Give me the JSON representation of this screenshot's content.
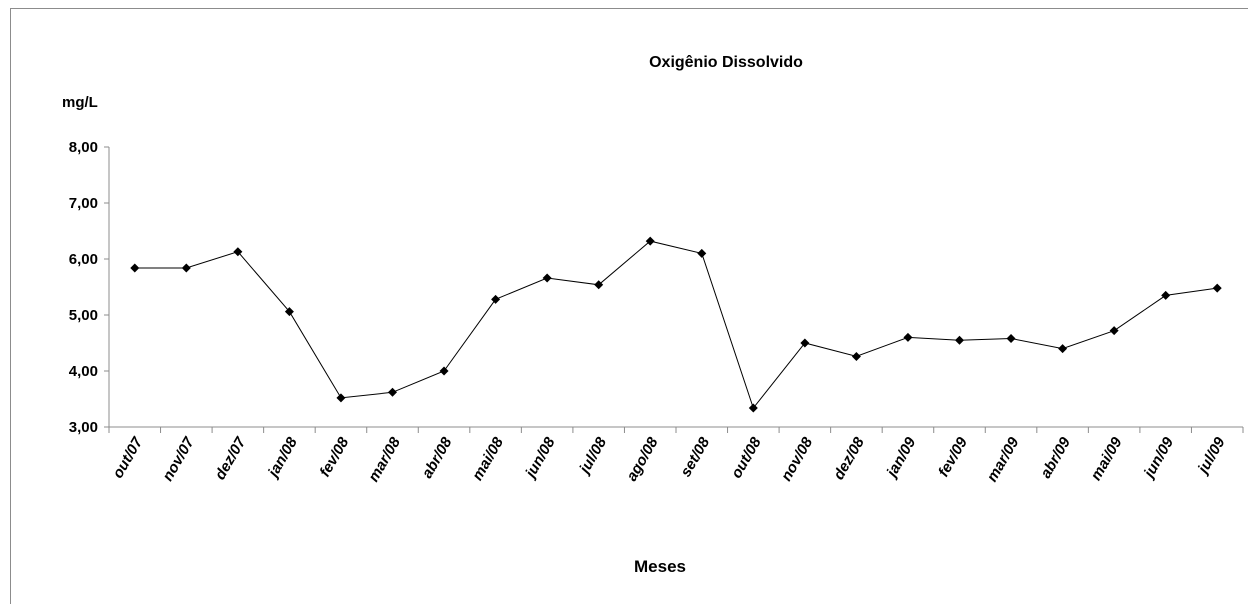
{
  "chart_data": {
    "type": "line",
    "title": "Oxigênio Dissolvido",
    "ylabel": "mg/L",
    "xlabel": "Meses",
    "ylim": [
      3,
      8
    ],
    "yticks": [
      3,
      4,
      5,
      6,
      7,
      8
    ],
    "ytick_labels": [
      "3,00",
      "4,00",
      "5,00",
      "6,00",
      "7,00",
      "8,00"
    ],
    "grid": false,
    "legend": "none",
    "categories": [
      "out/07",
      "nov/07",
      "dez/07",
      "jan/08",
      "fev/08",
      "mar/08",
      "abr/08",
      "mai/08",
      "jun/08",
      "jul/08",
      "ago/08",
      "set/08",
      "out/08",
      "nov/08",
      "dez/08",
      "jan/09",
      "fev/09",
      "mar/09",
      "abr/09",
      "mai/09",
      "jun/09",
      "jul/09"
    ],
    "values": [
      5.84,
      5.84,
      6.13,
      5.06,
      3.52,
      3.62,
      4.0,
      5.28,
      5.66,
      5.54,
      6.32,
      6.1,
      3.34,
      4.5,
      4.26,
      4.6,
      4.55,
      4.58,
      4.4,
      4.72,
      5.35,
      5.48
    ],
    "marker": "diamond",
    "colors": {
      "line": "#000000",
      "marker": "#000000",
      "axis": "#8c8c8c"
    }
  }
}
